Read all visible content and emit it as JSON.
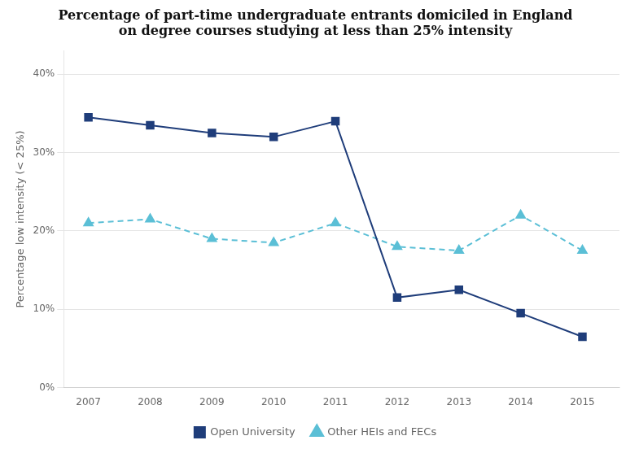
{
  "chart_data": {
    "type": "line",
    "title": [
      "Percentage of part-time undergraduate entrants domiciled in England",
      "on degree courses studying at less than 25% intensity"
    ],
    "ylabel": "Percentage low intensity (< 25%)",
    "x": [
      2007,
      2008,
      2009,
      2010,
      2011,
      2012,
      2013,
      2014,
      2015
    ],
    "xlim": [
      2006.6,
      2015.6
    ],
    "xticks": [
      2007,
      2008,
      2009,
      2010,
      2011,
      2012,
      2013,
      2014,
      2015
    ],
    "ylim": [
      0,
      0.43
    ],
    "yticks": [
      {
        "value": 0,
        "label": "0%"
      },
      {
        "value": 0.1,
        "label": "10%"
      },
      {
        "value": 0.2,
        "label": "20%"
      },
      {
        "value": 0.3,
        "label": "30%"
      },
      {
        "value": 0.4,
        "label": "40%"
      }
    ],
    "grid": "y",
    "legend": "bottom",
    "series": [
      {
        "name": "Open University",
        "color": "#1f3d7a",
        "marker": "square",
        "line_style": "solid",
        "values": [
          0.345,
          0.335,
          0.325,
          0.32,
          0.34,
          0.115,
          0.125,
          0.095,
          0.065
        ]
      },
      {
        "name": "Other HEIs and FECs",
        "color": "#5bbfd6",
        "marker": "triangle",
        "line_style": "dashed",
        "values": [
          0.21,
          0.215,
          0.19,
          0.185,
          0.21,
          0.18,
          0.175,
          0.22,
          0.175
        ]
      }
    ]
  }
}
